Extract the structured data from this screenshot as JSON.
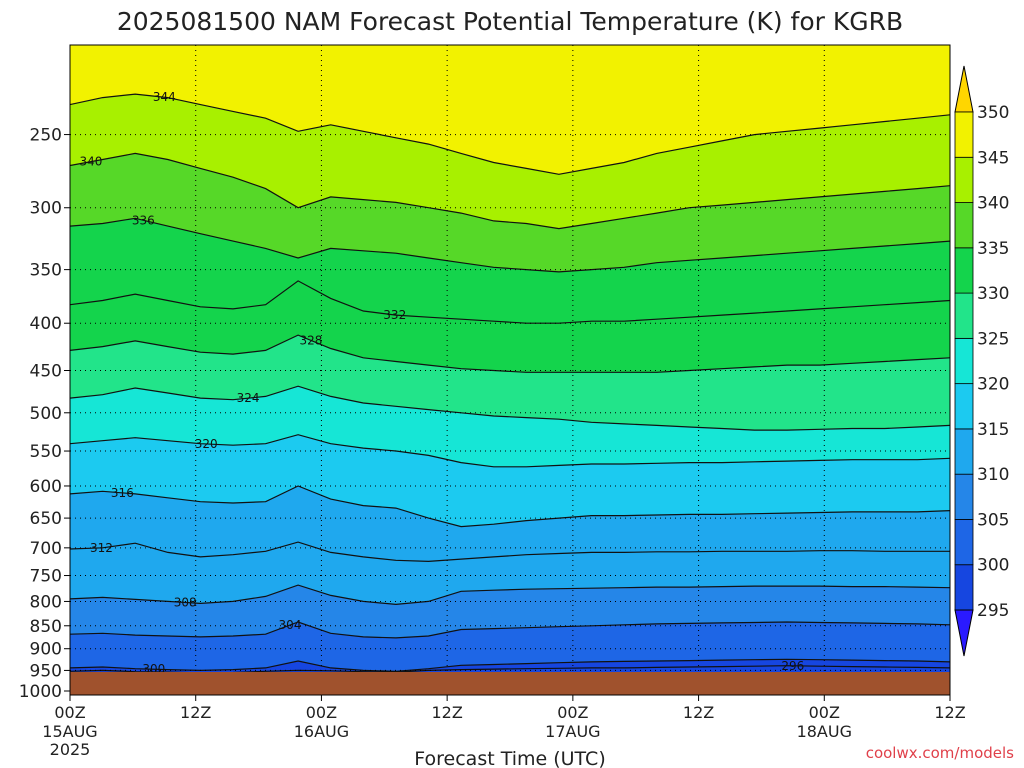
{
  "chart_data": {
    "type": "heatmap",
    "title": "2025081500 NAM Forecast Potential Temperature (K) for KGRB",
    "xlabel": "Forecast Time (UTC)",
    "ylabel": "",
    "y_scale": "log",
    "ylim": [
      1010,
      200
    ],
    "y_ticks": [
      250,
      300,
      350,
      400,
      450,
      500,
      550,
      600,
      650,
      700,
      750,
      800,
      850,
      900,
      950,
      1000
    ],
    "x_hours_range": [
      0,
      84
    ],
    "x_ticks": [
      {
        "hour": 0,
        "label": "00Z",
        "date": "15AUG",
        "year": "2025"
      },
      {
        "hour": 12,
        "label": "12Z",
        "date": "",
        "year": ""
      },
      {
        "hour": 24,
        "label": "00Z",
        "date": "16AUG",
        "year": ""
      },
      {
        "hour": 36,
        "label": "12Z",
        "date": "",
        "year": ""
      },
      {
        "hour": 48,
        "label": "00Z",
        "date": "17AUG",
        "year": ""
      },
      {
        "hour": 60,
        "label": "12Z",
        "date": "",
        "year": ""
      },
      {
        "hour": 72,
        "label": "00Z",
        "date": "18AUG",
        "year": ""
      },
      {
        "hour": 84,
        "label": "12Z",
        "date": "",
        "year": ""
      }
    ],
    "colorbar": {
      "levels": [
        295,
        300,
        305,
        310,
        315,
        320,
        325,
        330,
        335,
        340,
        345,
        350
      ],
      "colors": [
        "#2a1aff",
        "#1646e0",
        "#1e66e6",
        "#2586e8",
        "#1fa8ee",
        "#1ccaf0",
        "#16e6d6",
        "#22e48a",
        "#14d44c",
        "#56d828",
        "#a8f000",
        "#f2f200",
        "#ffd600"
      ]
    },
    "surface_color": "#a0522d",
    "contours": [
      {
        "value": 296,
        "pressures": [
          952,
          950,
          953,
          954,
          956,
          955,
          952,
          950,
          951,
          953,
          954,
          950,
          948,
          947,
          946,
          945,
          944,
          944,
          943,
          942,
          941,
          940,
          939,
          940,
          941,
          942,
          943,
          944
        ],
        "label_hour": 69
      },
      {
        "value": 300,
        "pressures": [
          944,
          942,
          946,
          948,
          950,
          948,
          944,
          928,
          944,
          950,
          952,
          946,
          938,
          936,
          934,
          932,
          930,
          929,
          928,
          927,
          926,
          925,
          924,
          925,
          926,
          927,
          928,
          930
        ],
        "label_hour": 8
      },
      {
        "value": 304,
        "pressures": [
          868,
          866,
          870,
          872,
          874,
          872,
          868,
          842,
          866,
          874,
          876,
          872,
          858,
          856,
          854,
          852,
          850,
          848,
          846,
          845,
          844,
          843,
          842,
          843,
          844,
          845,
          846,
          848
        ],
        "label_hour": 21
      },
      {
        "value": 308,
        "pressures": [
          795,
          792,
          796,
          800,
          804,
          800,
          790,
          768,
          788,
          800,
          806,
          800,
          780,
          778,
          776,
          775,
          774,
          773,
          772,
          772,
          771,
          770,
          770,
          770,
          771,
          771,
          772,
          773
        ],
        "label_hour": 11
      },
      {
        "value": 312,
        "pressures": [
          702,
          700,
          692,
          708,
          716,
          712,
          706,
          690,
          708,
          716,
          722,
          724,
          720,
          716,
          712,
          710,
          708,
          708,
          707,
          707,
          706,
          706,
          706,
          705,
          705,
          706,
          706,
          706
        ],
        "label_hour": 3
      },
      {
        "value": 316,
        "pressures": [
          612,
          608,
          612,
          618,
          624,
          626,
          624,
          600,
          620,
          630,
          634,
          650,
          664,
          660,
          654,
          650,
          646,
          646,
          645,
          644,
          644,
          643,
          642,
          641,
          640,
          640,
          640,
          638
        ],
        "label_hour": 5
      },
      {
        "value": 320,
        "pressures": [
          540,
          536,
          532,
          536,
          540,
          542,
          540,
          528,
          540,
          546,
          550,
          556,
          566,
          572,
          572,
          570,
          568,
          568,
          567,
          566,
          566,
          565,
          564,
          563,
          562,
          562,
          562,
          560
        ],
        "label_hour": 13
      },
      {
        "value": 324,
        "pressures": [
          482,
          478,
          470,
          476,
          482,
          484,
          480,
          468,
          480,
          488,
          492,
          496,
          500,
          504,
          506,
          508,
          512,
          514,
          516,
          518,
          520,
          522,
          522,
          521,
          520,
          520,
          518,
          516
        ],
        "label_hour": 17
      },
      {
        "value": 328,
        "pressures": [
          428,
          424,
          418,
          424,
          430,
          432,
          428,
          412,
          426,
          436,
          440,
          444,
          448,
          450,
          452,
          452,
          452,
          452,
          452,
          450,
          448,
          446,
          444,
          444,
          442,
          440,
          438,
          436
        ],
        "label_hour": 23
      },
      {
        "value": 332,
        "pressures": [
          382,
          378,
          372,
          378,
          384,
          386,
          382,
          360,
          376,
          388,
          392,
          394,
          396,
          398,
          400,
          400,
          398,
          398,
          396,
          394,
          392,
          390,
          388,
          386,
          384,
          382,
          380,
          378
        ],
        "label_hour": 31
      },
      {
        "value": 336,
        "pressures": [
          314,
          312,
          308,
          314,
          320,
          326,
          332,
          340,
          332,
          334,
          336,
          340,
          344,
          348,
          350,
          352,
          350,
          348,
          344,
          342,
          340,
          338,
          336,
          334,
          332,
          330,
          328,
          326
        ],
        "label_hour": 7
      },
      {
        "value": 340,
        "pressures": [
          270,
          266,
          262,
          266,
          272,
          278,
          286,
          300,
          292,
          294,
          296,
          300,
          304,
          310,
          312,
          316,
          312,
          308,
          304,
          300,
          298,
          296,
          294,
          292,
          290,
          288,
          286,
          284
        ],
        "label_hour": 2
      },
      {
        "value": 344,
        "pressures": [
          232,
          228,
          226,
          228,
          232,
          236,
          240,
          248,
          244,
          248,
          252,
          256,
          262,
          268,
          272,
          276,
          272,
          268,
          262,
          258,
          254,
          250,
          248,
          246,
          244,
          242,
          240,
          238
        ],
        "label_hour": 9
      }
    ]
  },
  "colorbar_labels": [
    "295",
    "300",
    "305",
    "310",
    "315",
    "320",
    "325",
    "330",
    "335",
    "340",
    "345",
    "350"
  ],
  "credit": "coolwx.com/models"
}
